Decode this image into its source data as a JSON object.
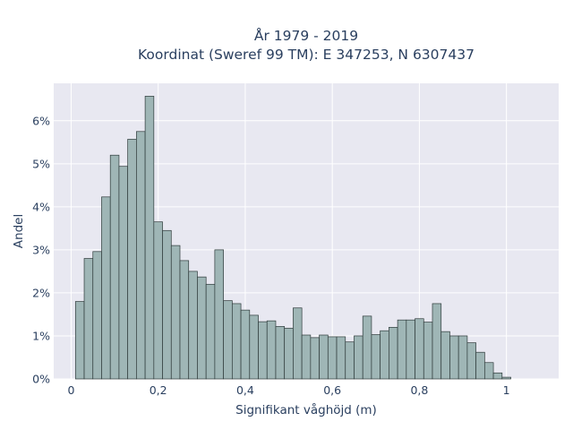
{
  "chart_data": {
    "type": "bar",
    "title_line1": "År 1979 - 2019",
    "title_line2": "Koordinat (Sweref 99 TM): E 347253, N 6307437",
    "xlabel": "Signifikant våghöjd (m)",
    "ylabel": "Andel",
    "xlim": [
      -0.04,
      1.12
    ],
    "ylim": [
      0,
      0.0687
    ],
    "bin_start": 0.01,
    "bin_width": 0.02,
    "x_ticks": [
      {
        "value": 0,
        "label": "0"
      },
      {
        "value": 0.2,
        "label": "0,2"
      },
      {
        "value": 0.4,
        "label": "0,4"
      },
      {
        "value": 0.6,
        "label": "0,6"
      },
      {
        "value": 0.8,
        "label": "0,8"
      },
      {
        "value": 1.0,
        "label": "1"
      }
    ],
    "y_ticks": [
      {
        "value": 0,
        "label": "0%"
      },
      {
        "value": 0.01,
        "label": "1%"
      },
      {
        "value": 0.02,
        "label": "2%"
      },
      {
        "value": 0.03,
        "label": "3%"
      },
      {
        "value": 0.04,
        "label": "4%"
      },
      {
        "value": 0.05,
        "label": "5%"
      },
      {
        "value": 0.06,
        "label": "6%"
      }
    ],
    "values": [
      0.018,
      0.028,
      0.0296,
      0.0423,
      0.052,
      0.0494,
      0.0557,
      0.0575,
      0.0657,
      0.0365,
      0.0345,
      0.031,
      0.0275,
      0.025,
      0.0237,
      0.022,
      0.03,
      0.0182,
      0.0175,
      0.016,
      0.0148,
      0.0133,
      0.0135,
      0.0122,
      0.0118,
      0.0165,
      0.0102,
      0.0096,
      0.0102,
      0.0098,
      0.0098,
      0.0086,
      0.01,
      0.0146,
      0.0103,
      0.0112,
      0.012,
      0.0137,
      0.0137,
      0.014,
      0.0132,
      0.0175,
      0.011,
      0.01,
      0.01,
      0.0084,
      0.0062,
      0.0038,
      0.0014,
      0.0004
    ],
    "colors": {
      "plot_bg": "#e8e8f1",
      "bar_fill": "#9fb6b6",
      "bar_edge": "#2f3b3b",
      "grid": "#ffffff",
      "text": "#2a3f5f"
    },
    "grid": true
  }
}
